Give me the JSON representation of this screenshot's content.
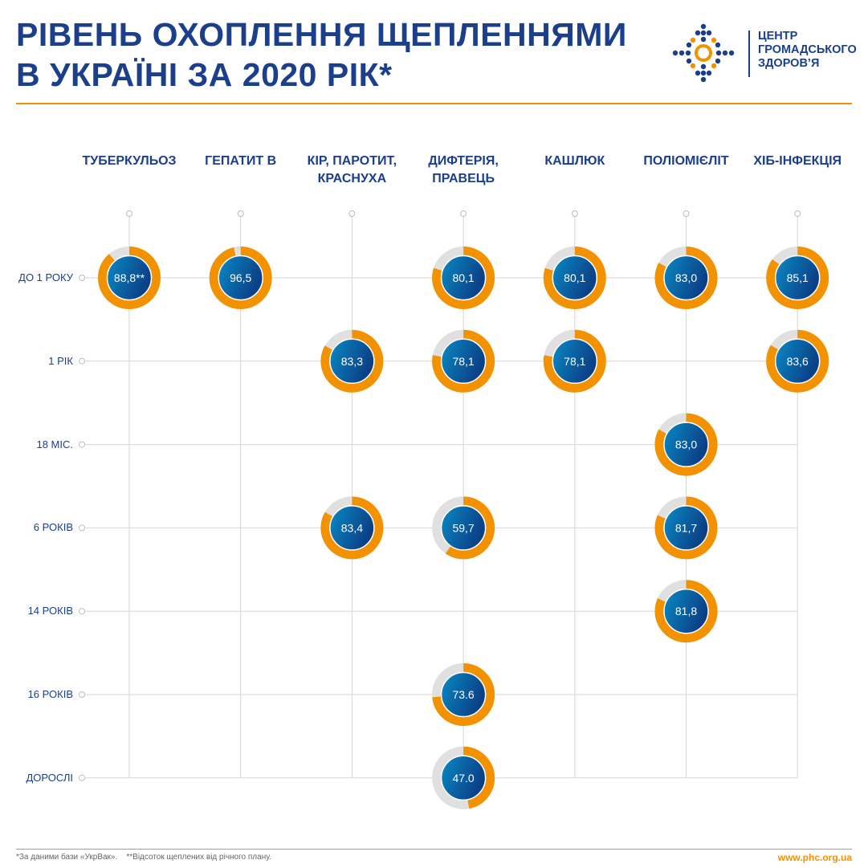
{
  "header": {
    "title_lines": [
      "РІВЕНЬ ОХОПЛЕННЯ ЩЕПЛЕННЯМИ",
      "В УКРАЇНІ ЗА 2020 РІК*"
    ],
    "logo_lines": [
      "ЦЕНТР",
      "ГРОМАДСЬКОГО",
      "ЗДОРОВ’Я"
    ]
  },
  "colors": {
    "navy": "#1b3f8b",
    "orange": "#f39200",
    "gray": "#e0e0e0",
    "blue_light": "#0a8ac4",
    "blue_dark": "#0b3f86"
  },
  "chart_data": {
    "type": "donut-grid",
    "columns": [
      "ТУБЕРКУЛЬОЗ",
      "ГЕПАТИТ В",
      "КІР, ПАРОТИТ, КРАСНУХА",
      "ДИФТЕРІЯ, ПРАВЕЦЬ",
      "КАШЛЮК",
      "ПОЛІОМІЄЛІТ",
      "ХІБ-ІНФЕКЦІЯ"
    ],
    "column_lines": [
      [
        "ТУБЕРКУЛЬОЗ"
      ],
      [
        "ГЕПАТИТ В"
      ],
      [
        "КІР, ПАРОТИТ,",
        "КРАСНУХА"
      ],
      [
        "ДИФТЕРІЯ,",
        "ПРАВЕЦЬ"
      ],
      [
        "КАШЛЮК"
      ],
      [
        "ПОЛІОМІЄЛІТ"
      ],
      [
        "ХІБ-ІНФЕКЦІЯ"
      ]
    ],
    "rows": [
      "ДО 1 РОКУ",
      "1 РІК",
      "18 МІС.",
      "6 РОКІВ",
      "14 РОКІВ",
      "16 РОКІВ",
      "ДОРОСЛІ"
    ],
    "unit": "%",
    "cells": [
      {
        "row": 0,
        "col": 0,
        "value": 88.8,
        "label": "88,8**"
      },
      {
        "row": 0,
        "col": 1,
        "value": 96.5,
        "label": "96,5"
      },
      {
        "row": 0,
        "col": 3,
        "value": 80.1,
        "label": "80,1"
      },
      {
        "row": 0,
        "col": 4,
        "value": 80.1,
        "label": "80,1"
      },
      {
        "row": 0,
        "col": 5,
        "value": 83.0,
        "label": "83,0"
      },
      {
        "row": 0,
        "col": 6,
        "value": 85.1,
        "label": "85,1"
      },
      {
        "row": 1,
        "col": 2,
        "value": 83.3,
        "label": "83,3"
      },
      {
        "row": 1,
        "col": 3,
        "value": 78.1,
        "label": "78,1"
      },
      {
        "row": 1,
        "col": 4,
        "value": 78.1,
        "label": "78,1"
      },
      {
        "row": 1,
        "col": 6,
        "value": 83.6,
        "label": "83,6"
      },
      {
        "row": 2,
        "col": 5,
        "value": 83.0,
        "label": "83,0"
      },
      {
        "row": 3,
        "col": 2,
        "value": 83.4,
        "label": "83,4"
      },
      {
        "row": 3,
        "col": 3,
        "value": 59.7,
        "label": "59,7"
      },
      {
        "row": 3,
        "col": 5,
        "value": 81.7,
        "label": "81,7"
      },
      {
        "row": 4,
        "col": 5,
        "value": 81.8,
        "label": "81,8"
      },
      {
        "row": 5,
        "col": 3,
        "value": 73.6,
        "label": "73.6"
      },
      {
        "row": 6,
        "col": 3,
        "value": 47.0,
        "label": "47.0"
      }
    ]
  },
  "footer": {
    "note": "*За даними бази «УкрВак».    **Відсоток щеплених від річного плану.",
    "site": "www.phc.org.ua"
  }
}
